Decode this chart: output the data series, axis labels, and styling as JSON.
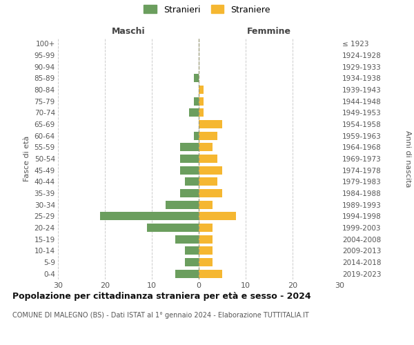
{
  "age_groups": [
    "100+",
    "95-99",
    "90-94",
    "85-89",
    "80-84",
    "75-79",
    "70-74",
    "65-69",
    "60-64",
    "55-59",
    "50-54",
    "45-49",
    "40-44",
    "35-39",
    "30-34",
    "25-29",
    "20-24",
    "15-19",
    "10-14",
    "5-9",
    "0-4"
  ],
  "birth_years": [
    "≤ 1923",
    "1924-1928",
    "1929-1933",
    "1934-1938",
    "1939-1943",
    "1944-1948",
    "1949-1953",
    "1954-1958",
    "1959-1963",
    "1964-1968",
    "1969-1973",
    "1974-1978",
    "1979-1983",
    "1984-1988",
    "1989-1993",
    "1994-1998",
    "1999-2003",
    "2004-2008",
    "2009-2013",
    "2014-2018",
    "2019-2023"
  ],
  "maschi": [
    0,
    0,
    0,
    1,
    0,
    1,
    2,
    0,
    1,
    4,
    4,
    4,
    3,
    4,
    7,
    21,
    11,
    5,
    3,
    3,
    5
  ],
  "femmine": [
    0,
    0,
    0,
    0,
    1,
    1,
    1,
    5,
    4,
    3,
    4,
    5,
    4,
    5,
    3,
    8,
    3,
    3,
    3,
    3,
    5
  ],
  "color_maschi": "#6b9e5e",
  "color_femmine": "#f5b731",
  "title_main": "Popolazione per cittadinanza straniera per età e sesso - 2024",
  "subtitle": "COMUNE DI MALEGNO (BS) - Dati ISTAT al 1° gennaio 2024 - Elaborazione TUTTITALIA.IT",
  "xlabel_left": "Maschi",
  "xlabel_right": "Femmine",
  "ylabel_left": "Fasce di età",
  "ylabel_right": "Anni di nascita",
  "legend_maschi": "Stranieri",
  "legend_femmine": "Straniere",
  "xlim": 30,
  "background_color": "#ffffff",
  "grid_color": "#cccccc"
}
